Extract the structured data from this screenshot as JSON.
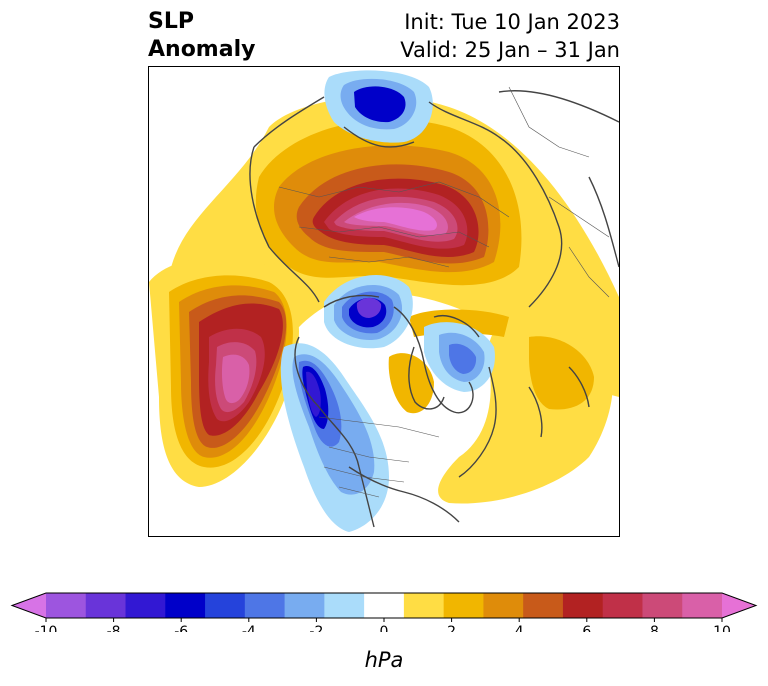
{
  "title": {
    "left_line1": "SLP",
    "left_line2": "Anomaly",
    "right_line1": "Init: Tue 10 Jan 2023",
    "right_line2": "Valid: 25 Jan – 31 Jan"
  },
  "colorbar": {
    "unit": "hPa",
    "ticks": [
      "-10",
      "-8",
      "-6",
      "-4",
      "-2",
      "0",
      "2",
      "4",
      "6",
      "8",
      "10"
    ],
    "colors": [
      "#d773e6",
      "#9d55df",
      "#6934d9",
      "#3218d3",
      "#0000c9",
      "#2543db",
      "#4e76e6",
      "#78acf0",
      "#aadcfa",
      "#ffffff",
      "#ffdd44",
      "#f1b600",
      "#df8c0a",
      "#c85a1a",
      "#b22222",
      "#c03048",
      "#cc4a78",
      "#d960a8",
      "#e671d6"
    ]
  },
  "map": {
    "projection": "north-polar-stereographic",
    "field": "sea-level-pressure-anomaly"
  }
}
